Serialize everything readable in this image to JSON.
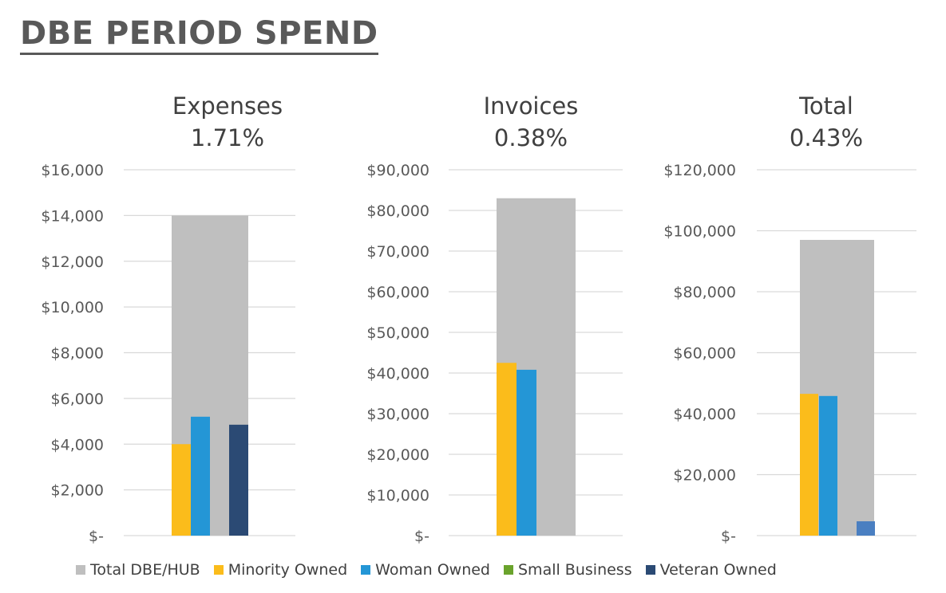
{
  "page": {
    "title": "DBE PERIOD SPEND"
  },
  "colors": {
    "Total DBE/HUB": "#bfbfbf",
    "Minority Owned": "#fbbc1b",
    "Woman Owned": "#2496d6",
    "Small Business": "#6aa32c",
    "Veteran Owned": "#2b4a74",
    "Total extra": "#4a7fc1"
  },
  "chart_data": [
    {
      "type": "bar",
      "title": "Expenses",
      "subtitle": "1.71%",
      "ylim": [
        0,
        16000
      ],
      "yticks": [
        0,
        2000,
        4000,
        6000,
        8000,
        10000,
        12000,
        14000,
        16000
      ],
      "ytick_labels": [
        "$-",
        "$2,000",
        "$4,000",
        "$6,000",
        "$8,000",
        "$10,000",
        "$12,000",
        "$14,000",
        "$16,000"
      ],
      "grid": true,
      "total": {
        "name": "Total DBE/HUB",
        "value": 14000
      },
      "series": [
        {
          "name": "Minority Owned",
          "value": 4000
        },
        {
          "name": "Woman Owned",
          "value": 5200
        },
        {
          "name": "Small Business",
          "value": 0
        },
        {
          "name": "Veteran Owned",
          "value": 4850
        }
      ]
    },
    {
      "type": "bar",
      "title": "Invoices",
      "subtitle": "0.38%",
      "ylim": [
        0,
        90000
      ],
      "yticks": [
        0,
        10000,
        20000,
        30000,
        40000,
        50000,
        60000,
        70000,
        80000,
        90000
      ],
      "ytick_labels": [
        "$-",
        "$10,000",
        "$20,000",
        "$30,000",
        "$40,000",
        "$50,000",
        "$60,000",
        "$70,000",
        "$80,000",
        "$90,000"
      ],
      "grid": true,
      "total": {
        "name": "Total DBE/HUB",
        "value": 83000
      },
      "series": [
        {
          "name": "Minority Owned",
          "value": 42500
        },
        {
          "name": "Woman Owned",
          "value": 40800
        },
        {
          "name": "Small Business",
          "value": 0
        },
        {
          "name": "Veteran Owned",
          "value": 0
        }
      ]
    },
    {
      "type": "bar",
      "title": "Total",
      "subtitle": "0.43%",
      "ylim": [
        0,
        120000
      ],
      "yticks": [
        0,
        20000,
        40000,
        60000,
        80000,
        100000,
        120000
      ],
      "ytick_labels": [
        "$-",
        "$20,000",
        "$40,000",
        "$60,000",
        "$80,000",
        "$100,000",
        "$120,000"
      ],
      "grid": true,
      "total": {
        "name": "Total DBE/HUB",
        "value": 97000
      },
      "series": [
        {
          "name": "Minority Owned",
          "value": 46500
        },
        {
          "name": "Woman Owned",
          "value": 45800
        },
        {
          "name": "Small Business",
          "value": 0
        },
        {
          "name": "Veteran Owned",
          "value": 4700
        }
      ]
    }
  ],
  "legend": {
    "position": "bottom",
    "items": [
      {
        "label": "Total DBE/HUB",
        "color": "#bfbfbf"
      },
      {
        "label": "Minority Owned",
        "color": "#fbbc1b"
      },
      {
        "label": "Woman Owned",
        "color": "#2496d6"
      },
      {
        "label": "Small Business",
        "color": "#6aa32c"
      },
      {
        "label": "Veteran Owned",
        "color": "#2b4a74"
      }
    ]
  }
}
